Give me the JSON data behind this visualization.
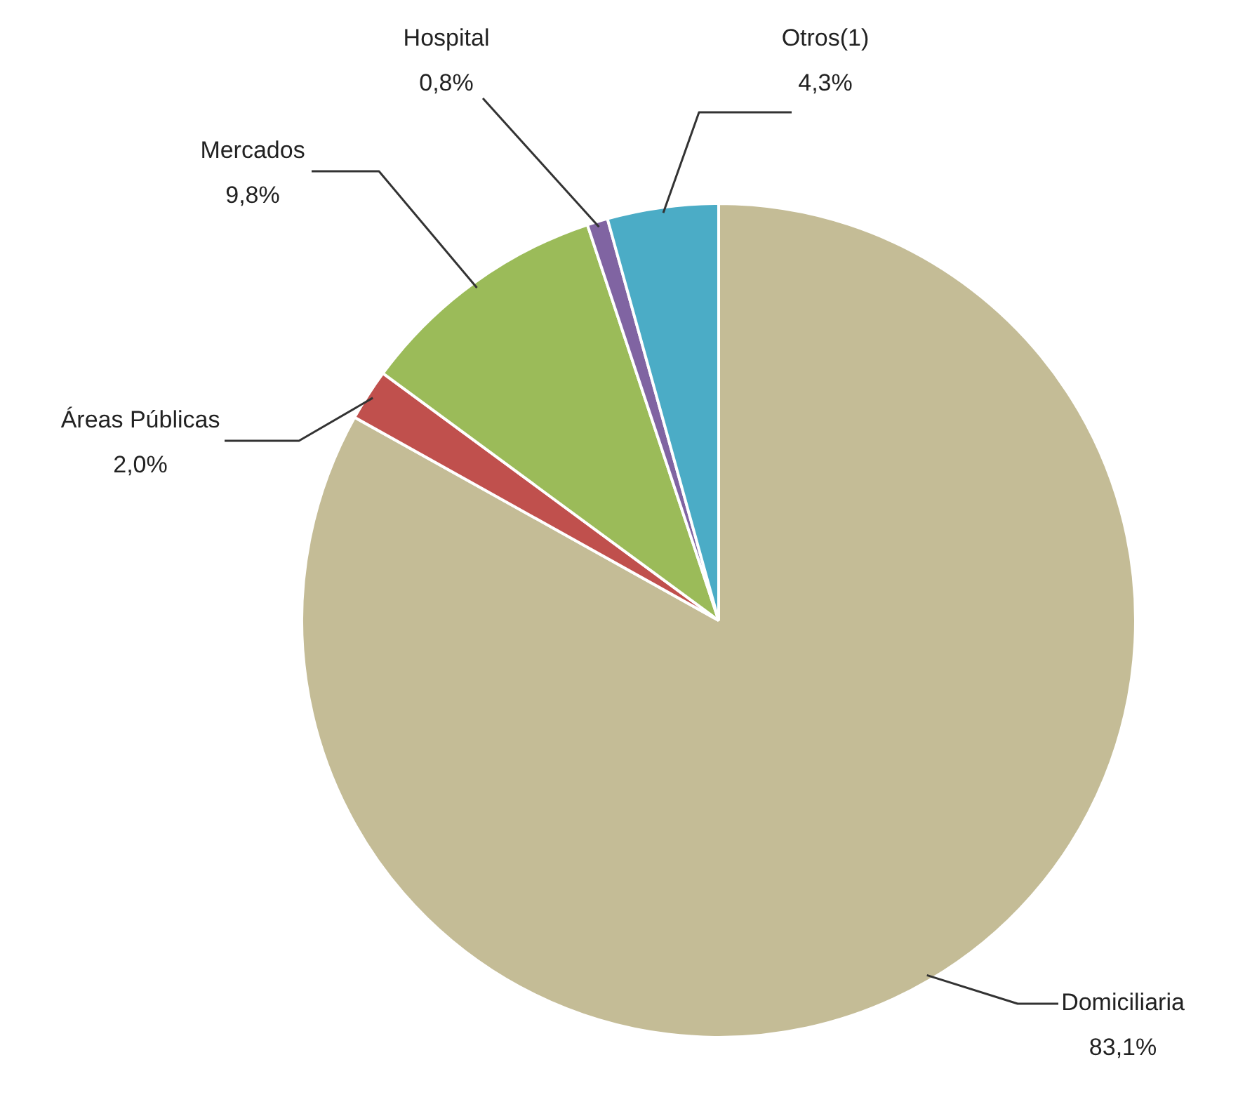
{
  "chart_data": {
    "type": "pie",
    "categories": [
      "Domiciliaria",
      "Áreas Públicas",
      "Mercados",
      "Hospital",
      "Otros(1)"
    ],
    "values": [
      83.1,
      2.0,
      9.8,
      0.8,
      4.3
    ],
    "colors": [
      "#c4bc96",
      "#c0504d",
      "#9bbb59",
      "#8064a2",
      "#4bacc6"
    ],
    "value_labels": [
      "83,1%",
      "2,0%",
      "9,8%",
      "0,8%",
      "4,3%"
    ]
  }
}
